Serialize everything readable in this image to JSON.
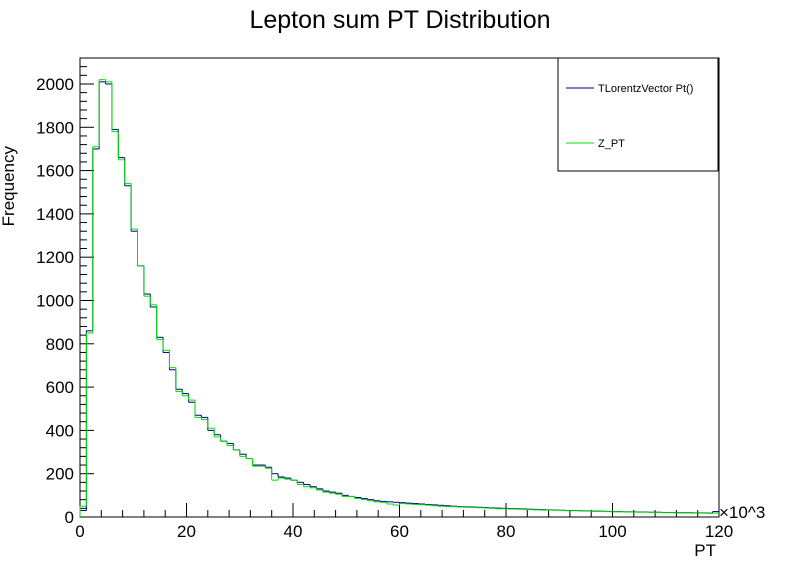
{
  "chart_data": {
    "type": "histogram-step",
    "title": "Lepton sum PT Distribution",
    "xlabel": "PT",
    "ylabel": "Frequency",
    "x_multiplier": "×10^3",
    "xlim": [
      0,
      120
    ],
    "ylim": [
      0,
      2120
    ],
    "xticks": [
      0,
      20,
      40,
      60,
      80,
      100,
      120
    ],
    "yticks": [
      0,
      200,
      400,
      600,
      800,
      1000,
      1200,
      1400,
      1600,
      1800,
      2000
    ],
    "bin_width": 1.2,
    "legend_position": "top-right",
    "series": [
      {
        "name": "TLorentzVector Pt()",
        "color": "#00008b",
        "values": [
          30,
          860,
          1700,
          2010,
          2000,
          1790,
          1660,
          1530,
          1320,
          1160,
          1030,
          970,
          830,
          760,
          680,
          590,
          570,
          530,
          470,
          460,
          400,
          380,
          350,
          340,
          310,
          290,
          270,
          240,
          240,
          230,
          200,
          185,
          180,
          170,
          160,
          150,
          140,
          130,
          120,
          115,
          110,
          100,
          95,
          90,
          85,
          80,
          75,
          72,
          70,
          68,
          66,
          64,
          62,
          60,
          58,
          56,
          54,
          52,
          50,
          48,
          47,
          46,
          45,
          44,
          42,
          41,
          40,
          39,
          38,
          37,
          36,
          35,
          34,
          33,
          32,
          31,
          30,
          30,
          29,
          28,
          27,
          27,
          26,
          25,
          25,
          24,
          24,
          23,
          23,
          22,
          22,
          21,
          21,
          20,
          20,
          20,
          19,
          19,
          18,
          25
        ]
      },
      {
        "name": "Z_PT",
        "color": "#00e000",
        "values": [
          50,
          850,
          1710,
          2020,
          2010,
          1780,
          1650,
          1540,
          1330,
          1160,
          1020,
          980,
          820,
          770,
          690,
          580,
          560,
          540,
          460,
          450,
          410,
          370,
          350,
          330,
          310,
          280,
          270,
          235,
          235,
          225,
          170,
          180,
          175,
          170,
          150,
          140,
          135,
          125,
          115,
          110,
          105,
          95,
          95,
          85,
          80,
          75,
          70,
          68,
          60,
          55,
          62,
          60,
          58,
          57,
          55,
          52,
          50,
          48,
          48,
          46,
          45,
          44,
          43,
          42,
          40,
          38,
          38,
          37,
          36,
          35,
          34,
          33,
          32,
          32,
          31,
          30,
          29,
          29,
          28,
          27,
          26,
          26,
          25,
          24,
          24,
          23,
          23,
          22,
          22,
          21,
          21,
          20,
          20,
          19,
          19,
          19,
          18,
          18,
          17,
          18
        ]
      }
    ]
  }
}
